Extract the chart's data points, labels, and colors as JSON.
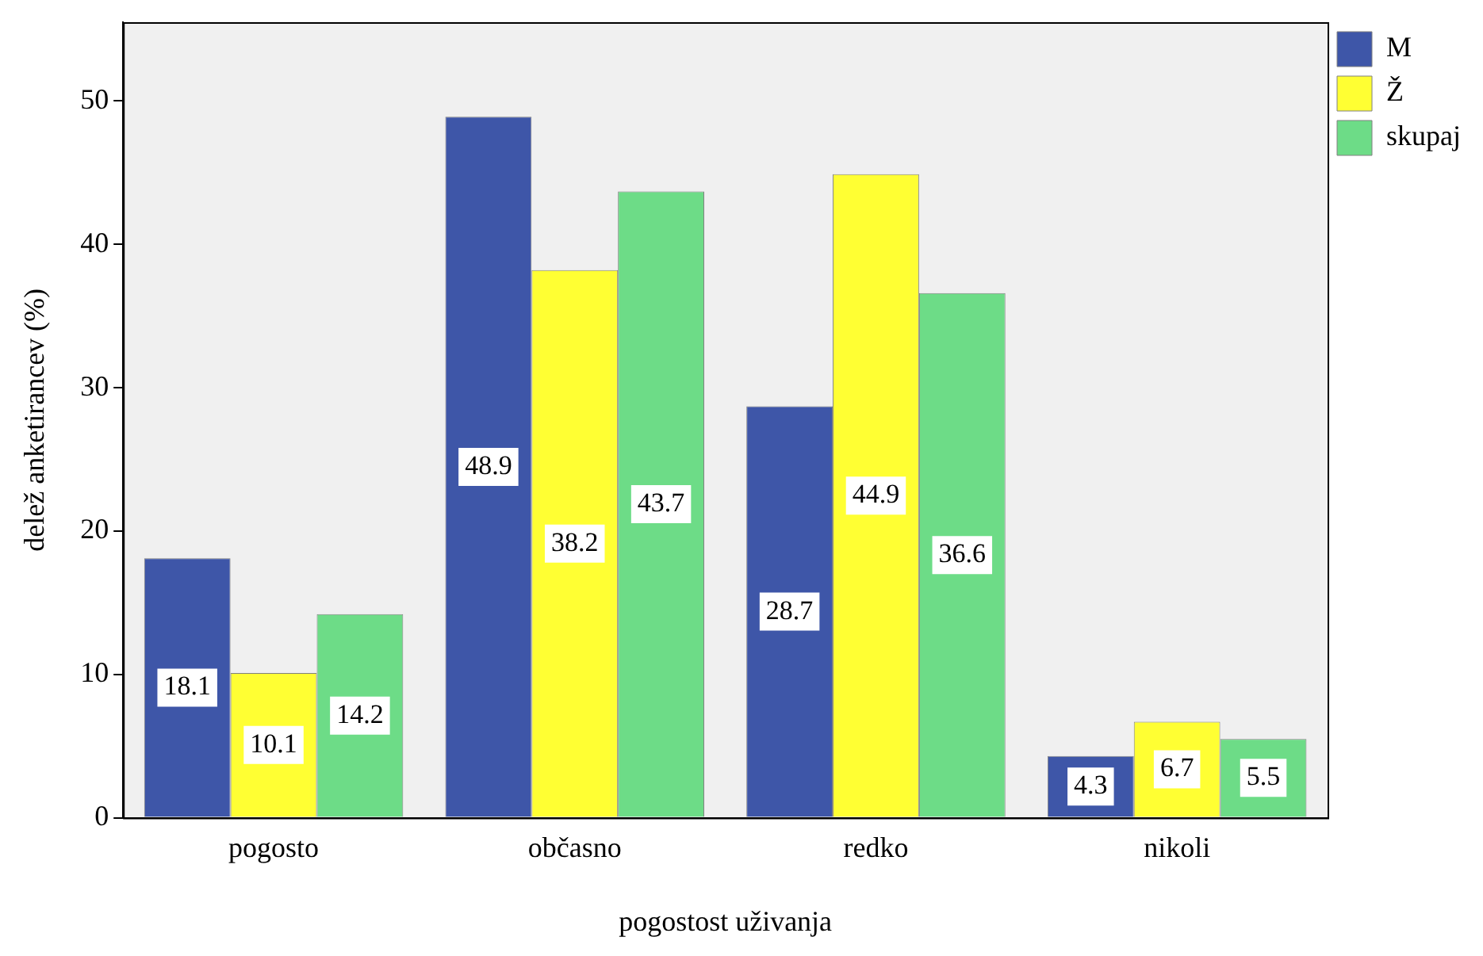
{
  "chart_data": {
    "type": "bar",
    "xlabel": "pogostost uživanja",
    "ylabel": "delež anketirancev (%)",
    "categories": [
      "pogosto",
      "občasno",
      "redko",
      "nikoli"
    ],
    "series": [
      {
        "name": "M",
        "color": "#3e56a8",
        "values": [
          18.1,
          48.9,
          28.7,
          4.3
        ]
      },
      {
        "name": "Ž",
        "color": "#ffff33",
        "values": [
          10.1,
          38.2,
          44.9,
          6.7
        ]
      },
      {
        "name": "skupaj",
        "color": "#6ddc87",
        "values": [
          14.2,
          43.7,
          36.6,
          5.5
        ]
      }
    ],
    "ylim": [
      0,
      55.5
    ],
    "yticks": [
      0,
      10,
      20,
      30,
      40,
      50
    ],
    "grid": false,
    "legend": "top right",
    "data_labels": true
  }
}
